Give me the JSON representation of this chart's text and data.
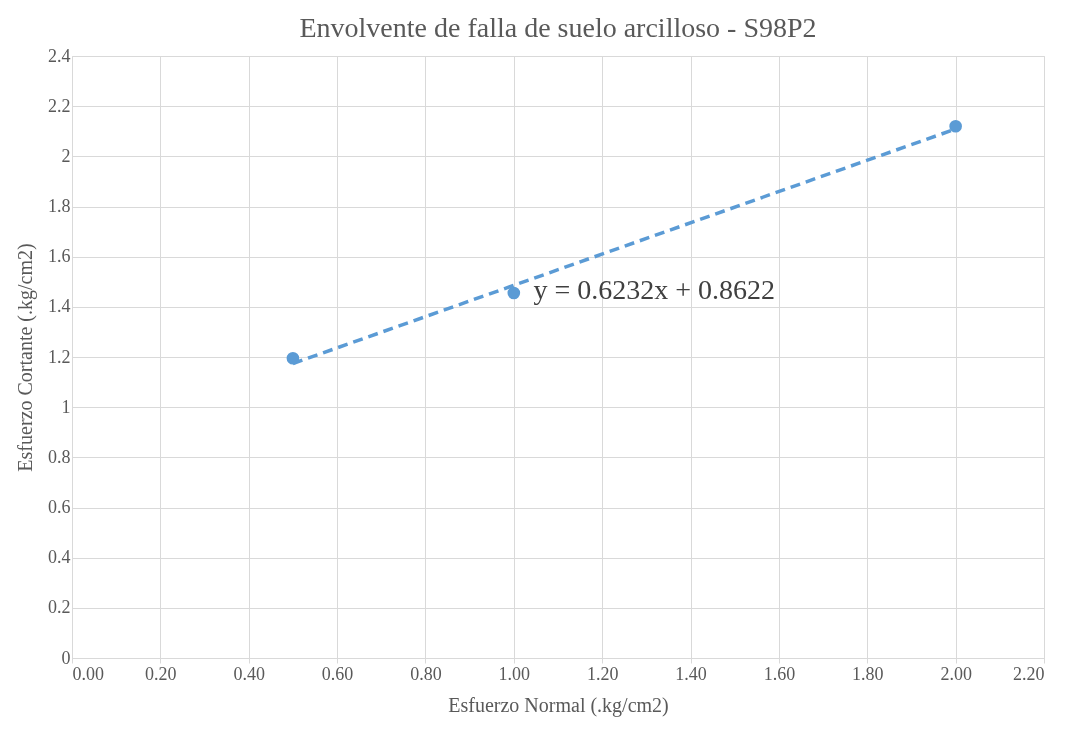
{
  "chart_data": {
    "type": "scatter",
    "title": "Envolvente de falla de suelo arcilloso - S98P2",
    "xlabel": "Esfuerzo Normal (.kg/cm2)",
    "ylabel": "Esfuerzo Cortante (.kg/cm2)",
    "xlim": [
      0,
      2.2
    ],
    "ylim": [
      0,
      2.4
    ],
    "xticks": [
      {
        "value": 0,
        "label": "0.00"
      },
      {
        "value": 0.2,
        "label": "0.20"
      },
      {
        "value": 0.4,
        "label": "0.40"
      },
      {
        "value": 0.6,
        "label": "0.60"
      },
      {
        "value": 0.8,
        "label": "0.80"
      },
      {
        "value": 1,
        "label": "1.00"
      },
      {
        "value": 1.2,
        "label": "1.20"
      },
      {
        "value": 1.4,
        "label": "1.40"
      },
      {
        "value": 1.6,
        "label": "1.60"
      },
      {
        "value": 1.8,
        "label": "1.80"
      },
      {
        "value": 2,
        "label": "2.00"
      },
      {
        "value": 2.2,
        "label": "2.20"
      }
    ],
    "yticks": [
      0,
      0.2,
      0.4,
      0.6,
      0.8,
      1,
      1.2,
      1.4,
      1.6,
      1.8,
      2,
      2.2,
      2.4
    ],
    "grid": true,
    "series": [
      {
        "marker": "circle",
        "color": "#5b9bd5",
        "x": [
          0.5,
          1,
          2
        ],
        "values": [
          1.195,
          1.455,
          2.12
        ]
      },
      {
        "type": "line",
        "color": "#5b9bd5",
        "line_style": "dashed",
        "x": [
          0.5,
          2
        ],
        "values": [
          1.174,
          2.109
        ]
      }
    ],
    "annotations": [
      "y = 0.6232x + 0.8622"
    ]
  }
}
